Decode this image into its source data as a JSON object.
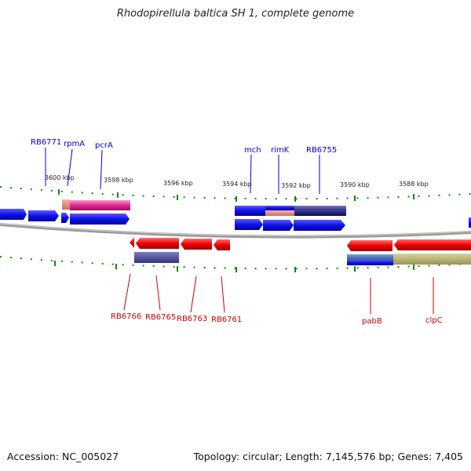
{
  "title": "Rhodopirellula baltica SH 1, complete genome",
  "footer": {
    "accession": "Accession: NC_005027",
    "summary": "Topology: circular; Length: 7,145,576 bp; Genes: 7,405"
  },
  "colors": {
    "forward_gene": "#1a1aee",
    "reverse_gene": "#ee1111",
    "forward_label": "#0000cc",
    "reverse_label": "#cc0000",
    "tick": "#118811",
    "backbone": "#888888"
  },
  "scale_labels": [
    "3600 kbp",
    "3598 kbp",
    "3596 kbp",
    "3594 kbp",
    "3592 kbp",
    "3590 kbp",
    "3588 kbp"
  ],
  "forward_labels": [
    "RB6771",
    "rpmA",
    "pcrA",
    "mch",
    "rimK",
    "RB6755"
  ],
  "reverse_labels": [
    "RB6766",
    "RB6765",
    "RB6763",
    "RB6761",
    "pabB",
    "clpC"
  ]
}
